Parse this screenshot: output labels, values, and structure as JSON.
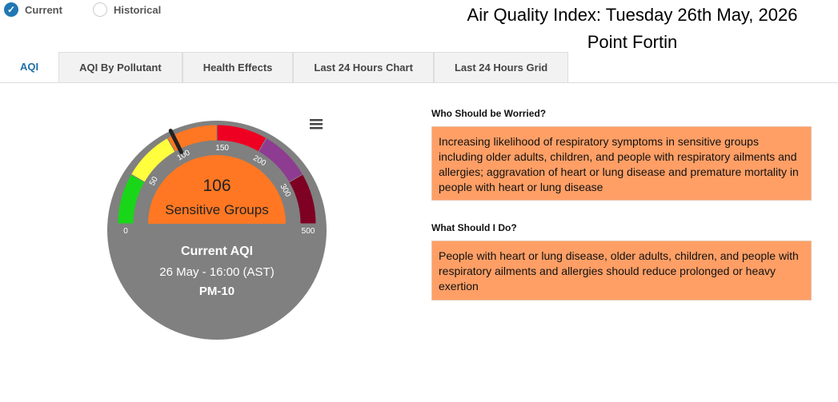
{
  "radio": {
    "current": "Current",
    "historical": "Historical"
  },
  "header": {
    "title": "Air Quality Index: Tuesday 26th May, 2026",
    "location": "Point Fortin"
  },
  "tabs": [
    "AQI",
    "AQI By Pollutant",
    "Health Effects",
    "Last 24 Hours Chart",
    "Last 24 Hours Grid"
  ],
  "gauge": {
    "value": 106,
    "category": "Sensitive Groups",
    "ticks": [
      0,
      50,
      100,
      150,
      200,
      300,
      500
    ],
    "band_colors": [
      "#19d619",
      "#ffff3d",
      "#ff7722",
      "#ee0022",
      "#8e3b92",
      "#7e0023"
    ],
    "caption": "Current AQI",
    "time": "26 May - 16:00 (AST)",
    "pollutant": "PM-10"
  },
  "panels": [
    {
      "heading": "Who Should be Worried?",
      "text": "Increasing likelihood of respiratory symptoms in sensitive groups including older adults, children, and people with respiratory ailments and allergies; aggravation of heart or lung disease and premature mortality in people with heart or lung disease"
    },
    {
      "heading": "What Should I Do?",
      "text": "People with heart or lung disease, older adults, children, and people with respiratory ailments and allergies should reduce prolonged or heavy exertion"
    }
  ]
}
